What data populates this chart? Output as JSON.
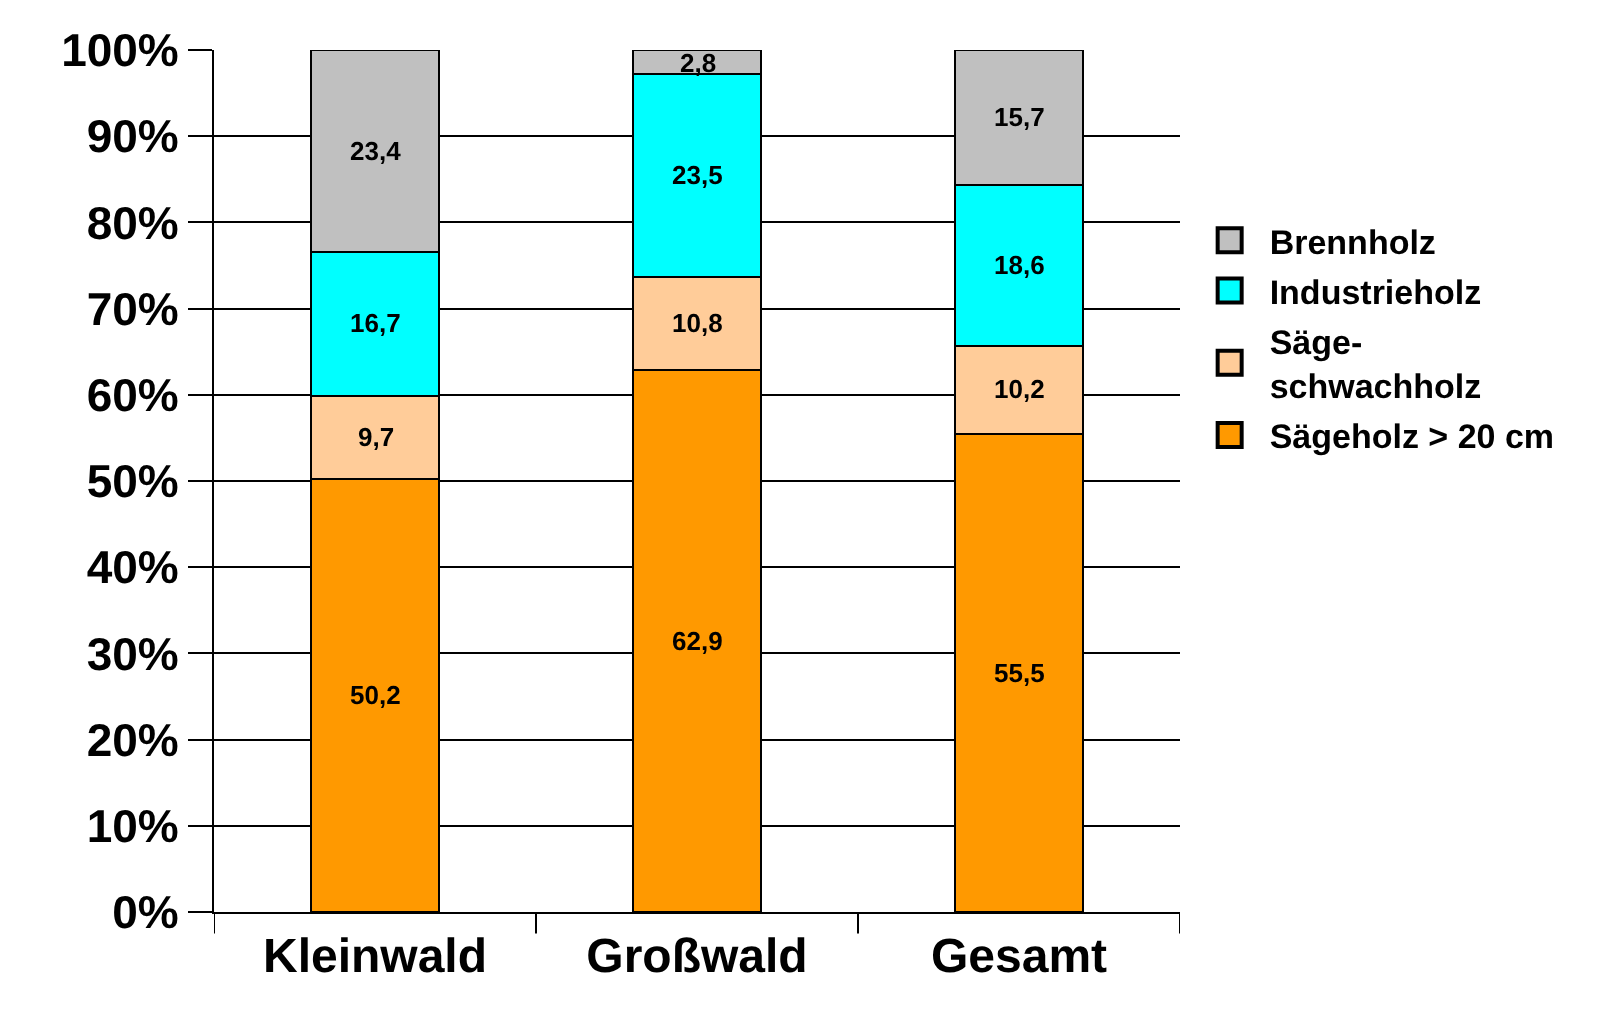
{
  "chart_data": {
    "type": "bar",
    "stacked": true,
    "categories": [
      "Kleinwald",
      "Großwald",
      "Gesamt"
    ],
    "series": [
      {
        "name": "Sägeholz > 20 cm",
        "color": "#ff9900",
        "values": [
          50.2,
          62.9,
          55.5
        ],
        "value_labels": [
          "50,2",
          "62,9",
          "55,5"
        ]
      },
      {
        "name": "Säge-\nschwachholz",
        "color": "#ffcc99",
        "values": [
          9.7,
          10.8,
          10.2
        ],
        "value_labels": [
          "9,7",
          "10,8",
          "10,2"
        ]
      },
      {
        "name": "Industrieholz",
        "color": "#00ffff",
        "values": [
          16.7,
          23.5,
          18.6
        ],
        "value_labels": [
          "16,7",
          "23,5",
          "18,6"
        ]
      },
      {
        "name": "Brennholz",
        "color": "#c0c0c0",
        "values": [
          23.4,
          2.8,
          15.7
        ],
        "value_labels": [
          "23,4",
          "2,8",
          "15,7"
        ]
      }
    ],
    "ylim": [
      0,
      100
    ],
    "yticks": [
      {
        "value": 0,
        "label": "0%"
      },
      {
        "value": 10,
        "label": "10%"
      },
      {
        "value": 20,
        "label": "20%"
      },
      {
        "value": 30,
        "label": "30%"
      },
      {
        "value": 40,
        "label": "40%"
      },
      {
        "value": 50,
        "label": "50%"
      },
      {
        "value": 60,
        "label": "60%"
      },
      {
        "value": 70,
        "label": "70%"
      },
      {
        "value": 80,
        "label": "80%"
      },
      {
        "value": 90,
        "label": "90%"
      },
      {
        "value": 100,
        "label": "100%"
      }
    ],
    "grid": "y",
    "legend": "right"
  }
}
